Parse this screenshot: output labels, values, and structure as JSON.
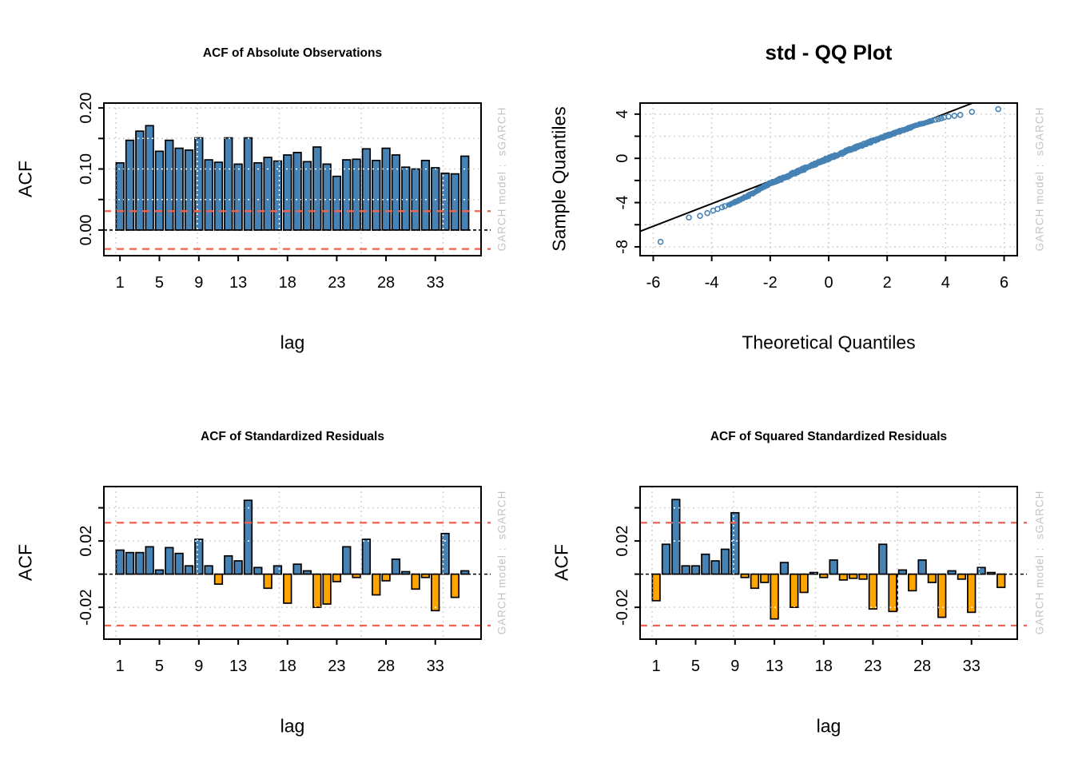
{
  "figure": {
    "background": "#ffffff"
  },
  "watermark": "GARCH model :  sGARCH",
  "colors": {
    "bar_positive": "#4682B4",
    "bar_negative": "#FFA500",
    "bar_border": "#000000",
    "conf_line": "#F4624D",
    "grid_gray": "#D4D4D4",
    "grid_over_bars": "#FFFFFF",
    "zero_line": "#000000",
    "qq_point": "#4682B4",
    "qq_line": "#000000",
    "text": "#000000",
    "watermark_gray": "#c3c3c3"
  },
  "panels": [
    {
      "title": "ACF of Absolute Observations",
      "xlabel": "lag",
      "ylabel": "ACF"
    },
    {
      "title": "std - QQ Plot",
      "xlabel": "Theoretical Quantiles",
      "ylabel": "Sample Quantiles"
    },
    {
      "title": "ACF of Standardized Residuals",
      "xlabel": "lag",
      "ylabel": "ACF"
    },
    {
      "title": "ACF of Squared Standardized Residuals",
      "xlabel": "lag",
      "ylabel": "ACF"
    }
  ],
  "chart_data": [
    {
      "type": "bar",
      "title": "ACF of Absolute Observations",
      "xlabel": "lag",
      "ylabel": "ACF",
      "categories": [
        1,
        2,
        3,
        4,
        5,
        6,
        7,
        8,
        9,
        10,
        11,
        12,
        13,
        14,
        15,
        16,
        17,
        18,
        19,
        20,
        21,
        22,
        23,
        24,
        25,
        26,
        27,
        28,
        29,
        30,
        31,
        32,
        33,
        34,
        35,
        36
      ],
      "values": [
        0.11,
        0.147,
        0.162,
        0.171,
        0.129,
        0.147,
        0.134,
        0.131,
        0.151,
        0.115,
        0.111,
        0.151,
        0.108,
        0.151,
        0.11,
        0.119,
        0.113,
        0.123,
        0.127,
        0.112,
        0.136,
        0.108,
        0.088,
        0.115,
        0.116,
        0.133,
        0.114,
        0.134,
        0.123,
        0.103,
        0.1,
        0.114,
        0.102,
        0.093,
        0.092,
        0.121
      ],
      "conf_bounds": [
        0.031,
        -0.031
      ],
      "ylim": [
        -0.042,
        0.208
      ],
      "yticks": [
        {
          "v": 0.0,
          "label": "0.00"
        },
        {
          "v": 0.05,
          "label": ""
        },
        {
          "v": 0.1,
          "label": "0.10"
        },
        {
          "v": 0.15,
          "label": ""
        },
        {
          "v": 0.2,
          "label": "0.20"
        }
      ],
      "grid_y": [
        0.05,
        0.1,
        0.15,
        0.2
      ],
      "xticks": [
        1,
        5,
        9,
        13,
        18,
        23,
        28,
        33
      ],
      "grid_x_offsets": [
        15,
        117,
        219.5,
        322,
        424.5
      ]
    },
    {
      "type": "scatter",
      "title": "std - QQ Plot",
      "xlabel": "Theoretical Quantiles",
      "ylabel": "Sample Quantiles",
      "xlim": [
        -6.45,
        6.45
      ],
      "ylim": [
        -8.8,
        5.0
      ],
      "xticks": [
        {
          "v": -6,
          "label": "-6"
        },
        {
          "v": -4,
          "label": "-4"
        },
        {
          "v": -2,
          "label": "-2"
        },
        {
          "v": 0,
          "label": "0"
        },
        {
          "v": 2,
          "label": "2"
        },
        {
          "v": 4,
          "label": "4"
        },
        {
          "v": 6,
          "label": "6"
        }
      ],
      "yticks": [
        {
          "v": -8,
          "label": "-8"
        },
        {
          "v": -6,
          "label": ""
        },
        {
          "v": -4,
          "label": "-4"
        },
        {
          "v": -2,
          "label": ""
        },
        {
          "v": 0,
          "label": "0"
        },
        {
          "v": 2,
          "label": ""
        },
        {
          "v": 4,
          "label": "4"
        }
      ],
      "grid_x": [
        -6,
        -4,
        -2,
        0,
        2,
        4,
        6
      ],
      "grid_y": [
        -8,
        -6,
        -4,
        -2,
        0,
        2,
        4
      ],
      "qq_line": {
        "slope": 1.02,
        "intercept": -0.02
      },
      "band": [
        {
          "x": -3.45,
          "y": -4.25,
          "s": 0.05
        },
        {
          "x": -3.2,
          "y": -3.95,
          "s": 0.06
        },
        {
          "x": -3.0,
          "y": -3.7,
          "s": 0.07
        },
        {
          "x": -2.8,
          "y": -3.45,
          "s": 0.08
        },
        {
          "x": -2.6,
          "y": -3.15,
          "s": 0.09
        },
        {
          "x": -2.4,
          "y": -2.85,
          "s": 0.1
        },
        {
          "x": -2.2,
          "y": -2.55,
          "s": 0.1
        },
        {
          "x": -2.0,
          "y": -2.28,
          "s": 0.11
        },
        {
          "x": -1.8,
          "y": -2.05,
          "s": 0.11
        },
        {
          "x": -1.6,
          "y": -1.85,
          "s": 0.12
        },
        {
          "x": -1.4,
          "y": -1.6,
          "s": 0.12
        },
        {
          "x": -1.2,
          "y": -1.35,
          "s": 0.13
        },
        {
          "x": -1.0,
          "y": -1.12,
          "s": 0.13
        },
        {
          "x": -0.8,
          "y": -0.9,
          "s": 0.13
        },
        {
          "x": -0.6,
          "y": -0.66,
          "s": 0.13
        },
        {
          "x": -0.4,
          "y": -0.44,
          "s": 0.13
        },
        {
          "x": -0.2,
          "y": -0.22,
          "s": 0.13
        },
        {
          "x": 0.0,
          "y": -0.01,
          "s": 0.13
        },
        {
          "x": 0.2,
          "y": 0.2,
          "s": 0.13
        },
        {
          "x": 0.4,
          "y": 0.42,
          "s": 0.13
        },
        {
          "x": 0.6,
          "y": 0.63,
          "s": 0.13
        },
        {
          "x": 0.8,
          "y": 0.85,
          "s": 0.13
        },
        {
          "x": 1.0,
          "y": 1.06,
          "s": 0.12
        },
        {
          "x": 1.2,
          "y": 1.27,
          "s": 0.12
        },
        {
          "x": 1.4,
          "y": 1.47,
          "s": 0.12
        },
        {
          "x": 1.6,
          "y": 1.67,
          "s": 0.11
        },
        {
          "x": 1.8,
          "y": 1.86,
          "s": 0.11
        },
        {
          "x": 2.0,
          "y": 2.05,
          "s": 0.1
        },
        {
          "x": 2.2,
          "y": 2.24,
          "s": 0.1
        },
        {
          "x": 2.4,
          "y": 2.43,
          "s": 0.09
        },
        {
          "x": 2.6,
          "y": 2.62,
          "s": 0.08
        },
        {
          "x": 2.8,
          "y": 2.8,
          "s": 0.08
        },
        {
          "x": 3.0,
          "y": 2.98,
          "s": 0.07
        },
        {
          "x": 3.2,
          "y": 3.14,
          "s": 0.06
        },
        {
          "x": 3.4,
          "y": 3.3,
          "s": 0.05
        },
        {
          "x": 3.55,
          "y": 3.42,
          "s": 0.04
        }
      ],
      "points_per_segment": 14,
      "outliers": [
        {
          "x": -5.75,
          "y": -7.55
        },
        {
          "x": -4.78,
          "y": -5.35
        },
        {
          "x": -4.4,
          "y": -5.2
        },
        {
          "x": -4.15,
          "y": -4.95
        },
        {
          "x": -3.95,
          "y": -4.72
        },
        {
          "x": -3.8,
          "y": -4.58
        },
        {
          "x": -3.65,
          "y": -4.42
        },
        {
          "x": -3.55,
          "y": -4.32
        },
        {
          "x": 3.65,
          "y": 3.5
        },
        {
          "x": 3.75,
          "y": 3.55
        },
        {
          "x": 3.85,
          "y": 3.62
        },
        {
          "x": 3.95,
          "y": 3.7
        },
        {
          "x": 4.1,
          "y": 3.78
        },
        {
          "x": 4.3,
          "y": 3.85
        },
        {
          "x": 4.5,
          "y": 3.93
        },
        {
          "x": 4.9,
          "y": 4.2
        },
        {
          "x": 5.8,
          "y": 4.45
        }
      ]
    },
    {
      "type": "bar",
      "title": "ACF of Standardized Residuals",
      "xlabel": "lag",
      "ylabel": "ACF",
      "categories": [
        1,
        2,
        3,
        4,
        5,
        6,
        7,
        8,
        9,
        10,
        11,
        12,
        13,
        14,
        15,
        16,
        17,
        18,
        19,
        20,
        21,
        22,
        23,
        24,
        25,
        26,
        27,
        28,
        29,
        30,
        31,
        32,
        33,
        34,
        35,
        36
      ],
      "values": [
        0.0145,
        0.013,
        0.013,
        0.0165,
        0.0025,
        0.016,
        0.0125,
        0.005,
        0.021,
        0.005,
        -0.006,
        0.011,
        0.008,
        0.0445,
        0.004,
        -0.0085,
        0.005,
        -0.0175,
        0.006,
        0.002,
        -0.02,
        -0.018,
        -0.0045,
        0.0165,
        -0.002,
        0.021,
        -0.0125,
        -0.004,
        0.009,
        0.0015,
        -0.009,
        -0.002,
        -0.022,
        0.0245,
        -0.014,
        0.002
      ],
      "conf_bounds": [
        0.031,
        -0.031
      ],
      "ylim": [
        -0.0392,
        0.0528
      ],
      "yticks": [
        {
          "v": 0.04,
          "label": ""
        },
        {
          "v": 0.02,
          "label": "0.02"
        },
        {
          "v": 0.0,
          "label": ""
        },
        {
          "v": -0.02,
          "label": "-0.02"
        }
      ],
      "grid_y": [
        0.04,
        0.02,
        -0.02
      ],
      "xticks": [
        1,
        5,
        9,
        13,
        18,
        23,
        28,
        33
      ],
      "grid_x_offsets": [
        15,
        117,
        219.5,
        322,
        424.5
      ]
    },
    {
      "type": "bar",
      "title": "ACF of Squared Standardized Residuals",
      "xlabel": "lag",
      "ylabel": "ACF",
      "categories": [
        1,
        2,
        3,
        4,
        5,
        6,
        7,
        8,
        9,
        10,
        11,
        12,
        13,
        14,
        15,
        16,
        17,
        18,
        19,
        20,
        21,
        22,
        23,
        24,
        25,
        26,
        27,
        28,
        29,
        30,
        31,
        32,
        33,
        34,
        35,
        36
      ],
      "values": [
        -0.016,
        0.018,
        0.045,
        0.005,
        0.005,
        0.012,
        0.008,
        0.015,
        0.037,
        -0.002,
        -0.0085,
        -0.005,
        -0.027,
        0.007,
        -0.02,
        -0.011,
        0.001,
        -0.002,
        0.0085,
        -0.0035,
        -0.0025,
        -0.003,
        -0.021,
        0.018,
        -0.0225,
        0.0025,
        -0.01,
        0.0085,
        -0.005,
        -0.026,
        0.002,
        -0.003,
        -0.023,
        0.004,
        0.001,
        -0.008
      ],
      "conf_bounds": [
        0.031,
        -0.031
      ],
      "ylim": [
        -0.0392,
        0.0528
      ],
      "yticks": [
        {
          "v": 0.04,
          "label": ""
        },
        {
          "v": 0.02,
          "label": "0.02"
        },
        {
          "v": 0.0,
          "label": ""
        },
        {
          "v": -0.02,
          "label": "-0.02"
        }
      ],
      "grid_y": [
        0.04,
        0.02,
        -0.02
      ],
      "xticks": [
        1,
        5,
        9,
        13,
        18,
        23,
        28,
        33
      ],
      "grid_x_offsets": [
        15,
        117,
        219.5,
        322,
        424.5
      ],
      "overlap_marker": {
        "x_offset": 322,
        "v_from": 0,
        "v_to": -0.0225
      }
    }
  ]
}
